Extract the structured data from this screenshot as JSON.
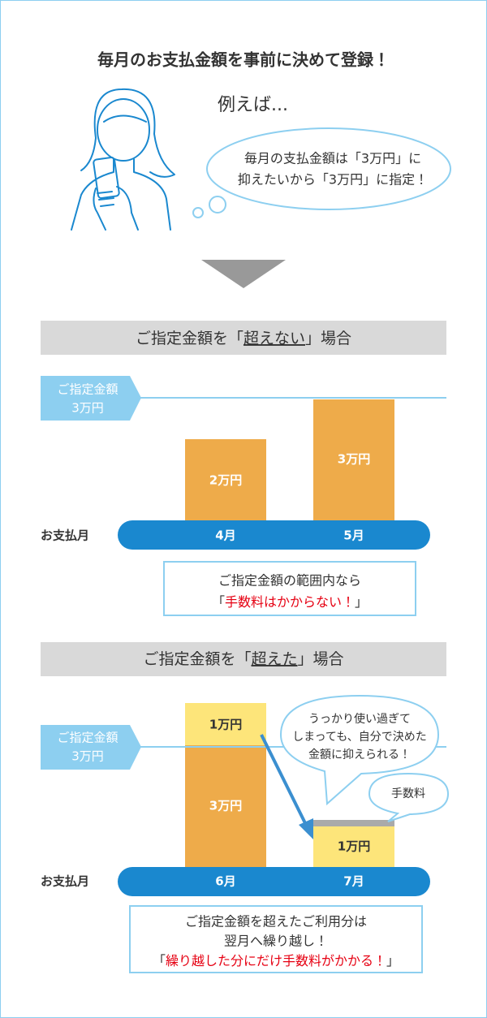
{
  "header": {
    "title": "毎月のお支払金額を事前に決めて登録！"
  },
  "example": {
    "lead": "例えば...",
    "bubble": [
      "毎月の支払金額は「3万円」に",
      "抑えたいから「3万円」に指定！"
    ]
  },
  "case_under": {
    "heading": {
      "before": "ご指定金額を「",
      "emphasis": "超えない",
      "after": "」場合"
    },
    "limit_label": [
      "ご指定金額",
      "3万円"
    ],
    "row_label": "お支払月",
    "bars": [
      {
        "month": "4月",
        "label": "2万円"
      },
      {
        "month": "5月",
        "label": "3万円"
      }
    ],
    "note": {
      "line1": "ご指定金額の範囲内なら",
      "open": "「",
      "highlight": "手数料はかからない！",
      "close": "」"
    }
  },
  "case_over": {
    "heading": {
      "before": "ご指定金額を「",
      "emphasis": "超えた",
      "after": "」場合"
    },
    "limit_label": [
      "ご指定金額",
      "3万円"
    ],
    "row_label": "お支払月",
    "bars": [
      {
        "month": "6月",
        "label": "3万円",
        "excess_label": "1万円"
      },
      {
        "month": "7月",
        "label": "1万円"
      }
    ],
    "bubble": [
      "うっかり使い過ぎて",
      "しまっても、自分で決めた",
      "金額に抑えられる！"
    ],
    "fee_bubble": "手数料",
    "note": {
      "line1": "ご指定金額を超えたご利用分は",
      "line2": "翌月へ繰り越し！",
      "open": "「",
      "highlight": "繰り越した分にだけ手数料がかかる！",
      "close": "」"
    }
  }
}
